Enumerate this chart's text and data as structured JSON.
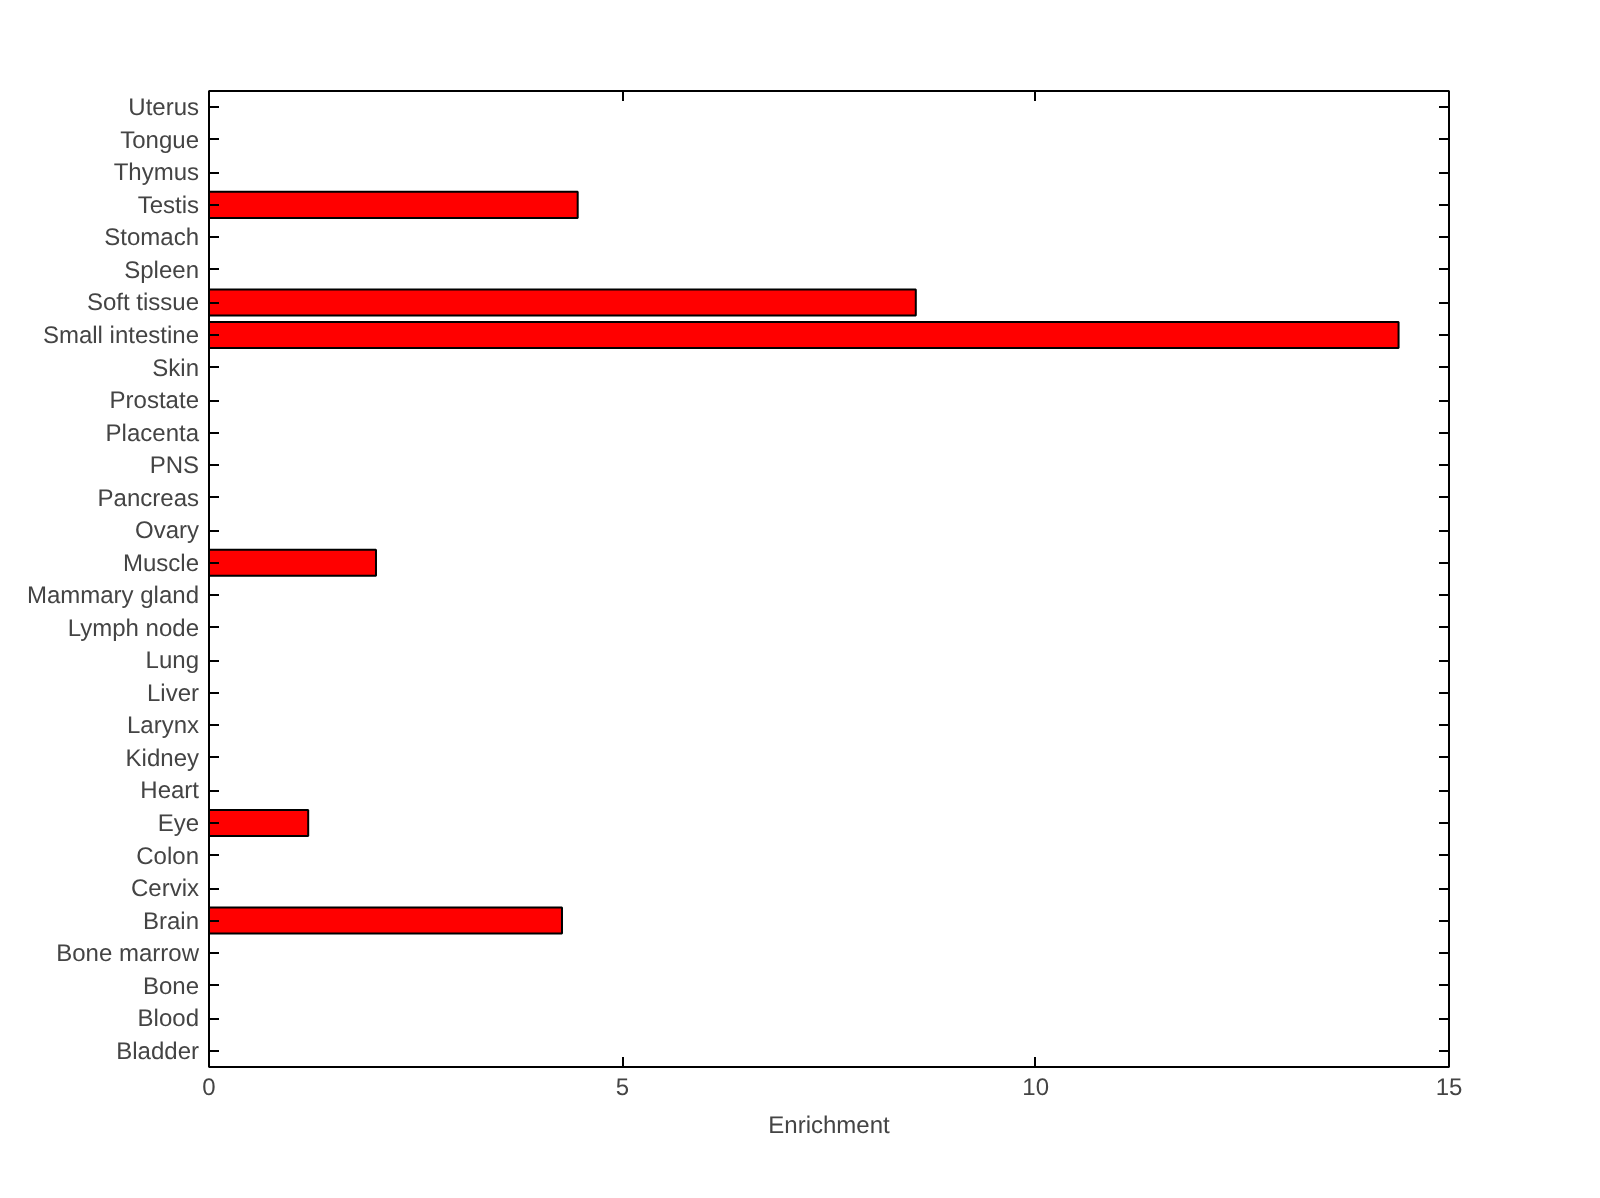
{
  "chart_data": {
    "type": "bar",
    "orientation": "horizontal",
    "xlabel": "Enrichment",
    "categories": [
      "Uterus",
      "Tongue",
      "Thymus",
      "Testis",
      "Stomach",
      "Spleen",
      "Soft tissue",
      "Small intestine",
      "Skin",
      "Prostate",
      "Placenta",
      "PNS",
      "Pancreas",
      "Ovary",
      "Muscle",
      "Mammary gland",
      "Lymph node",
      "Lung",
      "Liver",
      "Larynx",
      "Kidney",
      "Heart",
      "Eye",
      "Colon",
      "Cervix",
      "Brain",
      "Bone marrow",
      "Bone",
      "Blood",
      "Bladder"
    ],
    "values": [
      0,
      0,
      0,
      4.46,
      0,
      0,
      8.55,
      14.39,
      0,
      0,
      0,
      0,
      0,
      0,
      2.02,
      0,
      0,
      0,
      0,
      0,
      0,
      0,
      1.2,
      0,
      0,
      4.27,
      0,
      0,
      0,
      0
    ],
    "color": "#ff0000",
    "xlim": [
      0,
      15
    ],
    "xticks": [
      0,
      5,
      10,
      15
    ],
    "grid": false
  }
}
